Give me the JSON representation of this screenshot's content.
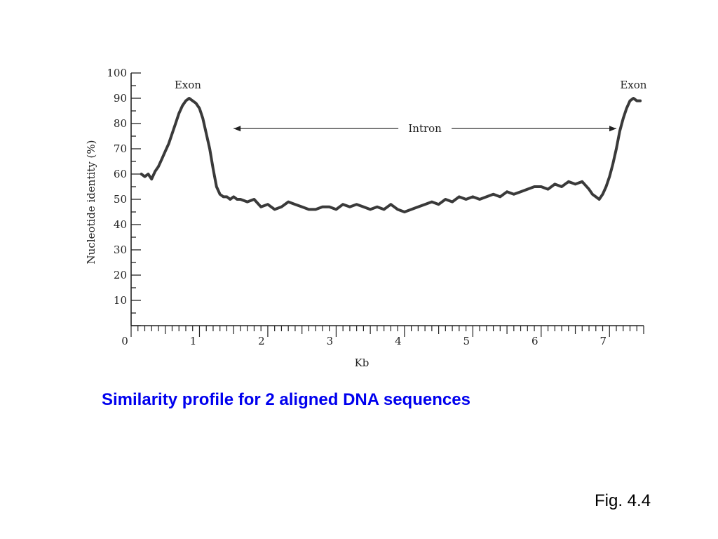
{
  "caption": "Similarity profile for 2 aligned DNA sequences",
  "fig_label": "Fig. 4.4",
  "colors": {
    "caption": "#0000ee",
    "line": "#3a3a3a",
    "axis": "#222222"
  },
  "chart_data": {
    "type": "line",
    "title": "",
    "xlabel": "Kb",
    "ylabel": "Nucleotide identity (%)",
    "xlim": [
      0,
      7.5
    ],
    "ylim": [
      0,
      100
    ],
    "xticks": [
      0,
      1,
      2,
      3,
      4,
      5,
      6,
      7
    ],
    "yticks": [
      10,
      20,
      30,
      40,
      50,
      60,
      70,
      80,
      90,
      100
    ],
    "grid": false,
    "annotations": [
      {
        "text": "Exon",
        "x": 0.83,
        "y": 93
      },
      {
        "text": "Exon",
        "x": 7.35,
        "y": 93
      },
      {
        "text": "Intron",
        "x1": 1.5,
        "x2": 7.1,
        "y": 78
      }
    ],
    "series": [
      {
        "x": [
          0.15,
          0.2,
          0.25,
          0.3,
          0.35,
          0.4,
          0.45,
          0.5,
          0.55,
          0.6,
          0.65,
          0.7,
          0.75,
          0.8,
          0.85,
          0.9,
          0.95,
          1.0,
          1.05,
          1.1,
          1.15,
          1.2,
          1.25,
          1.3,
          1.35,
          1.4,
          1.45,
          1.5,
          1.55,
          1.6,
          1.7,
          1.8,
          1.9,
          2.0,
          2.1,
          2.2,
          2.3,
          2.4,
          2.5,
          2.6,
          2.7,
          2.8,
          2.9,
          3.0,
          3.1,
          3.2,
          3.3,
          3.4,
          3.5,
          3.6,
          3.7,
          3.8,
          3.9,
          4.0,
          4.1,
          4.2,
          4.3,
          4.4,
          4.5,
          4.6,
          4.7,
          4.8,
          4.9,
          5.0,
          5.1,
          5.2,
          5.3,
          5.4,
          5.5,
          5.6,
          5.7,
          5.8,
          5.9,
          6.0,
          6.1,
          6.2,
          6.3,
          6.4,
          6.5,
          6.6,
          6.7,
          6.75,
          6.8,
          6.85,
          6.9,
          6.95,
          7.0,
          7.05,
          7.1,
          7.15,
          7.2,
          7.25,
          7.3,
          7.35,
          7.4,
          7.45
        ],
        "y": [
          60,
          59,
          60,
          58,
          61,
          63,
          66,
          69,
          72,
          76,
          80,
          84,
          87,
          89,
          90,
          89,
          88,
          86,
          82,
          76,
          70,
          62,
          55,
          52,
          51,
          51,
          50,
          51,
          50,
          50,
          49,
          50,
          47,
          48,
          46,
          47,
          49,
          48,
          47,
          46,
          46,
          47,
          47,
          46,
          48,
          47,
          48,
          47,
          46,
          47,
          46,
          48,
          46,
          45,
          46,
          47,
          48,
          49,
          48,
          50,
          49,
          51,
          50,
          51,
          50,
          51,
          52,
          51,
          53,
          52,
          53,
          54,
          55,
          55,
          54,
          56,
          55,
          57,
          56,
          57,
          54,
          52,
          51,
          50,
          52,
          55,
          59,
          64,
          70,
          77,
          82,
          86,
          89,
          90,
          89,
          89
        ]
      }
    ]
  }
}
